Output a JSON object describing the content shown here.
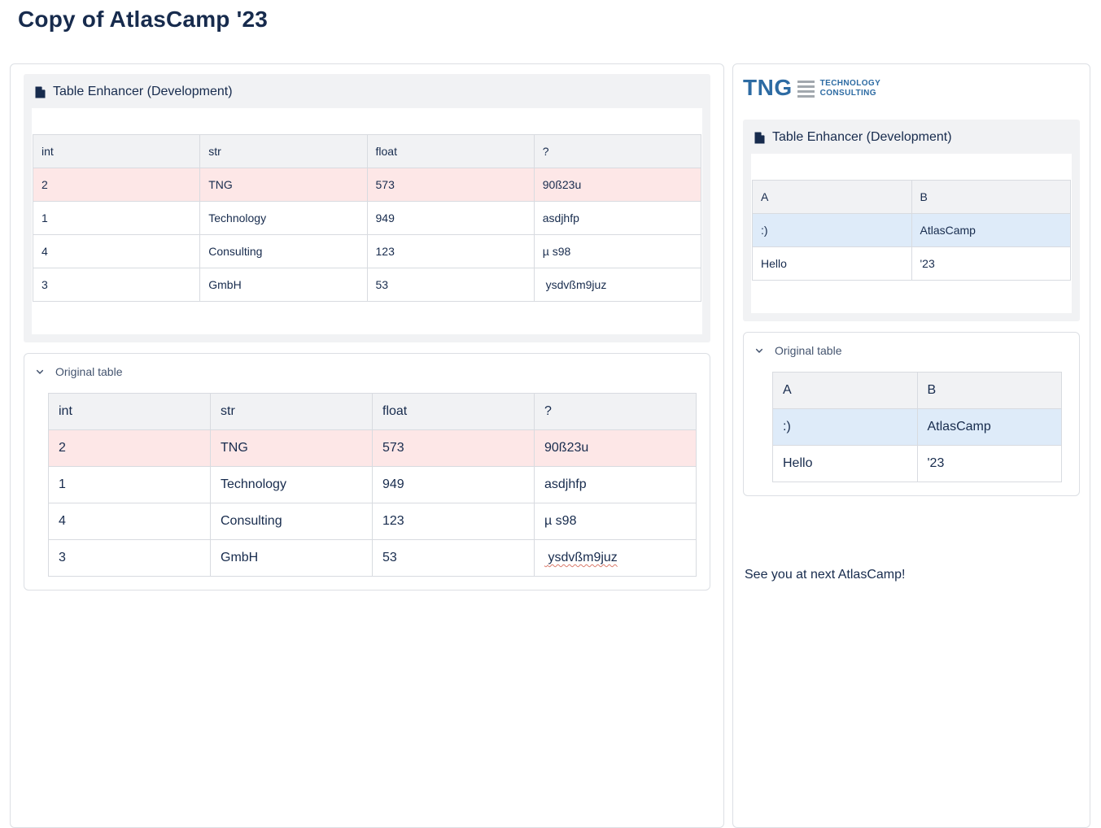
{
  "page": {
    "title": "Copy of AtlasCamp '23"
  },
  "colors": {
    "text_navy": "#172B4D",
    "secondary_text": "#44546F",
    "panel_gray": "#f1f2f4",
    "row_highlight_red": "#fde7e7",
    "row_highlight_blue": "#deebf9",
    "logo_blue": "#2d6ba3",
    "border_gray": "#dcdfe4"
  },
  "left_panel": {
    "macro_title": "Table Enhancer (Development)",
    "enhanced_table": {
      "headers": [
        "int",
        "str",
        "float",
        "?"
      ],
      "rows": [
        [
          "2",
          "TNG",
          "573",
          "90ß23u"
        ],
        [
          "1",
          "Technology",
          "949",
          "asdjhfp"
        ],
        [
          "4",
          "Consulting",
          "123",
          "µ s98"
        ],
        [
          "3",
          "GmbH",
          "53",
          " ysdvßm9juz"
        ]
      ],
      "row_highlights": [
        "red",
        null,
        null,
        null
      ]
    },
    "expand_label": "Original table",
    "original_table": {
      "headers": [
        "int",
        "str",
        "float",
        "?"
      ],
      "rows": [
        [
          "2",
          "TNG",
          "573",
          "90ß23u"
        ],
        [
          "1",
          "Technology",
          "949",
          "asdjhfp"
        ],
        [
          "4",
          "Consulting",
          "123",
          "µ s98"
        ],
        [
          "3",
          "GmbH",
          "53",
          " ysdvßm9juz"
        ]
      ],
      "row_highlights": [
        "red",
        null,
        null,
        null
      ],
      "misspelled_cell": [
        3,
        3
      ]
    }
  },
  "right_panel": {
    "logo": {
      "text": "TNG",
      "caption_line1": "TECHNOLOGY",
      "caption_line2": "CONSULTING"
    },
    "macro_title": "Table Enhancer (Development)",
    "enhanced_table": {
      "headers": [
        "A",
        "B"
      ],
      "rows": [
        [
          ":)",
          "AtlasCamp"
        ],
        [
          "Hello",
          "'23"
        ]
      ],
      "row_highlights": [
        "blue",
        null
      ]
    },
    "expand_label": "Original table",
    "original_table": {
      "headers": [
        "A",
        "B"
      ],
      "rows": [
        [
          ":)",
          "AtlasCamp"
        ],
        [
          "Hello",
          "'23"
        ]
      ],
      "row_highlights": [
        "blue",
        null
      ]
    },
    "footer_text": "See you at next AtlasCamp!"
  }
}
